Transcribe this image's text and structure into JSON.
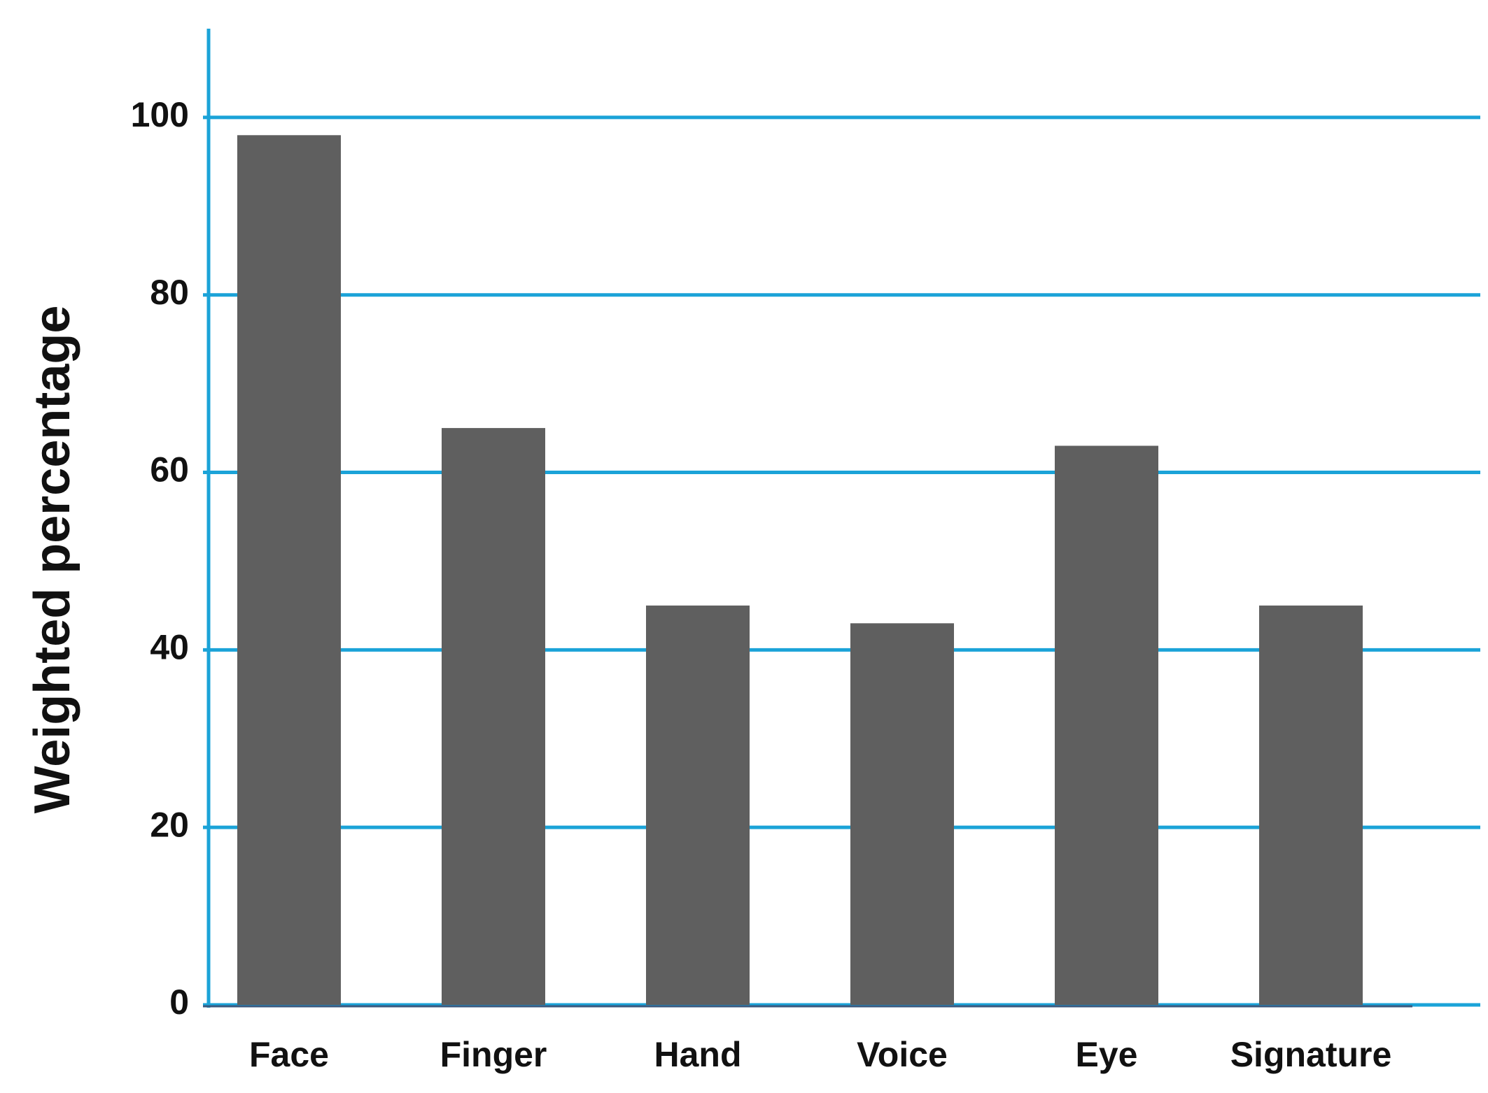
{
  "chart_data": {
    "type": "bar",
    "y_label": "Weighted  percentage",
    "categories": [
      "Face",
      "Finger",
      "Hand",
      "Voice",
      "Eye",
      "Signature"
    ],
    "values": [
      98,
      65,
      45,
      43,
      63,
      45
    ],
    "color": "#5f5f5f",
    "grid_color": "#1ba3d8",
    "ylim": [
      0,
      110
    ],
    "yticks": [
      0,
      20,
      40,
      60,
      80,
      100
    ],
    "grid": true
  }
}
